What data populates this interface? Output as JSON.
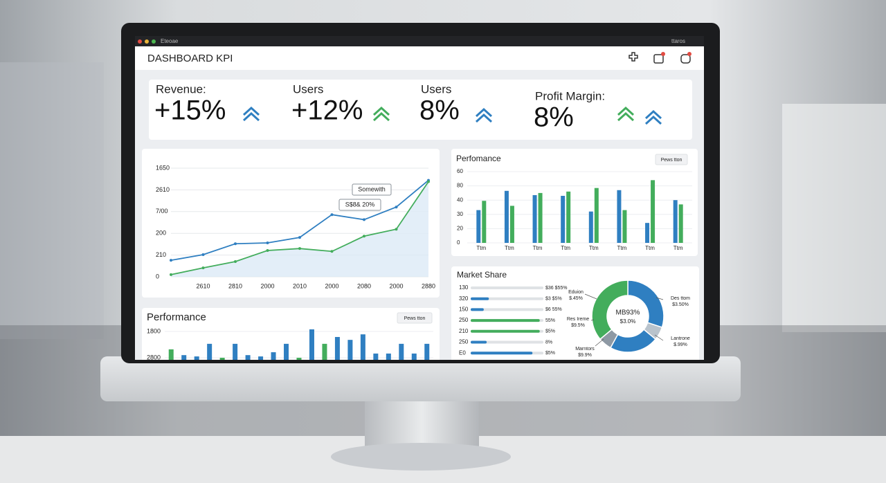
{
  "window": {
    "title": "Eteoae",
    "status": "ttaros"
  },
  "header": {
    "title": "DASHBOARD KPI"
  },
  "kpis": [
    {
      "label": "Revenue:",
      "value": "+15%"
    },
    {
      "label": "Users",
      "value": "+12%"
    },
    {
      "label": "Users",
      "value": "8%"
    },
    {
      "label": "Profit Margin:",
      "value": "8%"
    }
  ],
  "chart_data": [
    {
      "type": "line",
      "categories": [
        null,
        "2610",
        "2810",
        "2000",
        "2010",
        "2000",
        "2080",
        "2000",
        "2880"
      ],
      "series": [
        {
          "color": "#2f7fc1",
          "values": [
            0.76,
            1.02,
            1.52,
            1.56,
            1.81,
            2.86,
            2.63,
            3.21,
            4.44
          ]
        },
        {
          "color": "#43ad5c",
          "values": [
            0.1,
            0.41,
            0.7,
            1.21,
            1.3,
            1.17,
            1.87,
            2.19,
            4.38
          ]
        }
      ],
      "ylim": [
        0,
        5
      ],
      "yticks": [
        0,
        {
          "value": 1,
          "label": "210"
        },
        {
          "value": 2,
          "label": "200"
        },
        {
          "value": 3,
          "label": "7/00"
        },
        {
          "value": 4,
          "label": "2610"
        },
        {
          "value": 5,
          "label": "1650"
        }
      ],
      "annotations": [
        "Somewith",
        "S$8& 20%"
      ],
      "grid": true,
      "area": true
    },
    {
      "type": "bar",
      "title": "Perfomance",
      "button": "Pews tton",
      "categories": [
        "Ttm",
        "Ttm",
        "Ttm",
        "Ttm",
        "Ttm",
        "Ttm",
        "Ttm",
        "Ttm"
      ],
      "series": [
        {
          "color": "#2f7fc1",
          "values": [
            2.3,
            3.65,
            3.35,
            3.3,
            2.2,
            3.7,
            1.4,
            3.0
          ]
        },
        {
          "color": "#43ad5c",
          "values": [
            2.95,
            2.6,
            3.5,
            3.6,
            3.85,
            2.3,
            4.4,
            2.7
          ]
        }
      ],
      "ylim": [
        0,
        5
      ],
      "yticks": [
        0,
        {
          "value": 1,
          "label": "20"
        },
        {
          "value": 2,
          "label": "30"
        },
        {
          "value": 3,
          "label": "40"
        },
        {
          "value": 4,
          "label": "80"
        },
        {
          "value": 5,
          "label": "60"
        }
      ],
      "grid": true
    },
    {
      "type": "bar",
      "title": "Performance",
      "button": "Pews tton",
      "values": [
        1.32,
        1.1,
        1.05,
        1.53,
        1.0,
        1.53,
        1.1,
        1.05,
        1.21,
        1.53,
        1.0,
        2.08,
        1.53,
        1.79,
        1.68,
        1.89,
        1.16,
        1.16,
        1.53,
        1.16,
        1.53
      ],
      "colors": [
        "#43ad5c",
        "#2f7fc1",
        "#2f7fc1",
        "#2f7fc1",
        "#43ad5c",
        "#2f7fc1",
        "#2f7fc1",
        "#2f7fc1",
        "#2f7fc1",
        "#2f7fc1",
        "#43ad5c",
        "#2f7fc1",
        "#43ad5c",
        "#2f7fc1",
        "#2f7fc1",
        "#2f7fc1",
        "#2f7fc1",
        "#2f7fc1",
        "#2f7fc1",
        "#2f7fc1",
        "#2f7fc1"
      ],
      "ylim": [
        0,
        2.5
      ],
      "yticks": [
        {
          "value": 1,
          "label": "2800"
        },
        {
          "value": 2,
          "label": "1800"
        }
      ]
    },
    {
      "type": "hbar",
      "title": "Market Share",
      "categories": [
        "130",
        "320",
        "150",
        "250",
        "210",
        "250",
        "E0"
      ],
      "values": [
        0,
        25,
        18,
        95,
        95,
        22,
        85
      ],
      "colors": [
        "#2f7fc1",
        "#2f7fc1",
        "#2f7fc1",
        "#43ad5c",
        "#43ad5c",
        "#2f7fc1",
        "#2f7fc1"
      ],
      "notes": [
        "$36 $55%",
        "$3 $5%",
        "$6 55%",
        "55%",
        "$5%",
        "8%",
        "$5%"
      ],
      "xlim": [
        0,
        100
      ]
    },
    {
      "type": "pie",
      "values": [
        30,
        6,
        22,
        6,
        36
      ],
      "colors": [
        "#2f7fc1",
        "#b9c3cc",
        "#2f7fc1",
        "#8e99a4",
        "#43ad5c"
      ],
      "center": [
        "MB93%",
        "$3.0%"
      ],
      "callouts": [
        {
          "name": "Des ttom",
          "value": "$3.50%"
        },
        {
          "name": "Lantrone",
          "value": "$.99%"
        },
        {
          "name": "Marntors",
          "value": "$9.9%"
        },
        {
          "name": "Res Ireme",
          "value": "$9.5%"
        },
        {
          "name": "Eduion",
          "value": "$.45%"
        }
      ]
    }
  ]
}
